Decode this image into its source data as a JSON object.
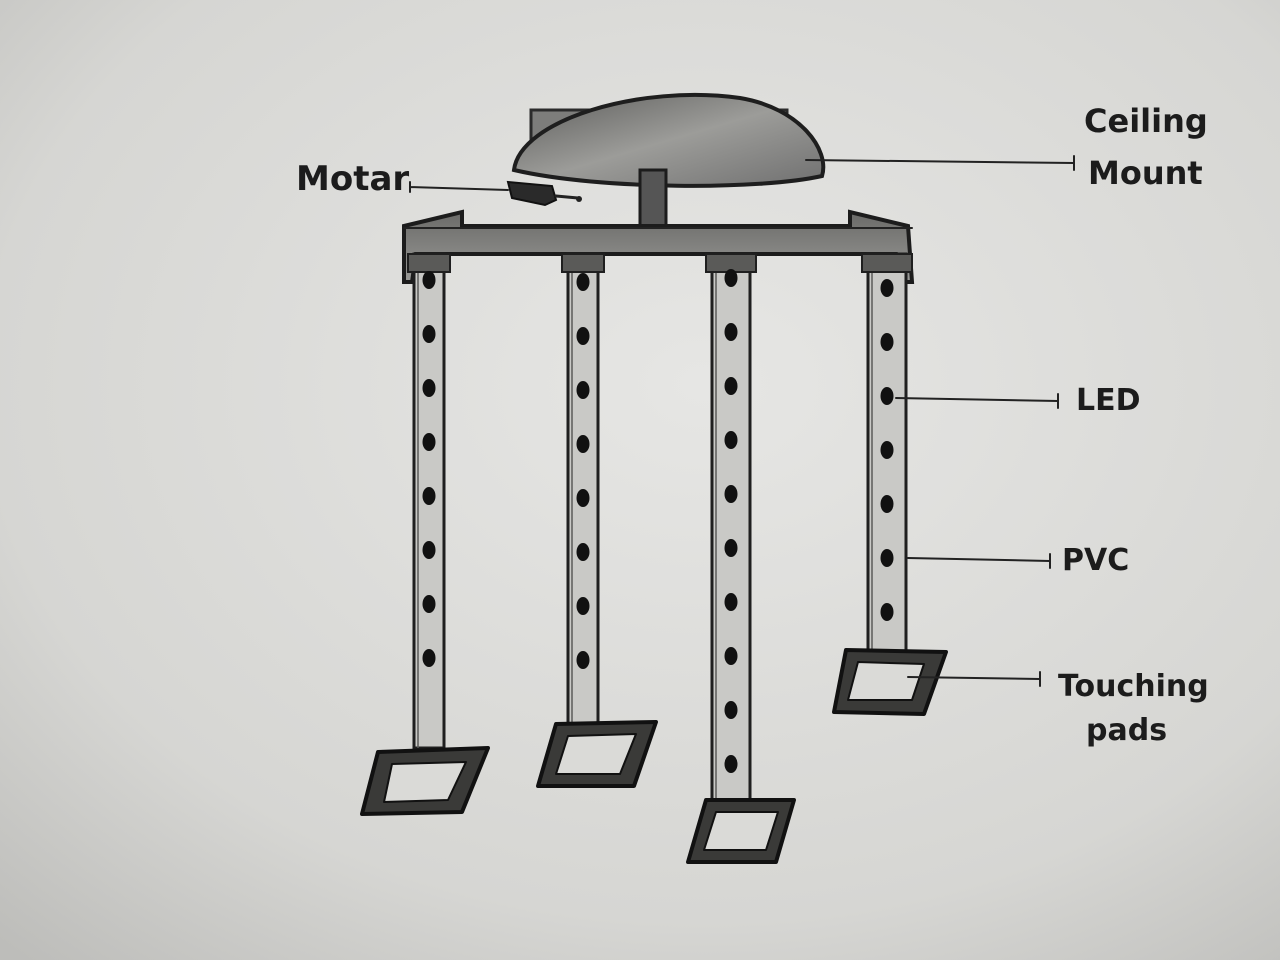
{
  "labels": {
    "motor": "Motar",
    "ceiling_mount_line1": "Ceiling",
    "ceiling_mount_line2": "Mount",
    "led": "LED",
    "pvc": "PVC",
    "touching_pads_line1": "Touching",
    "touching_pads_line2": "pads"
  },
  "colors": {
    "paper": "#dcdcda",
    "pencil": "#222222",
    "shade": "#8a8a88"
  }
}
